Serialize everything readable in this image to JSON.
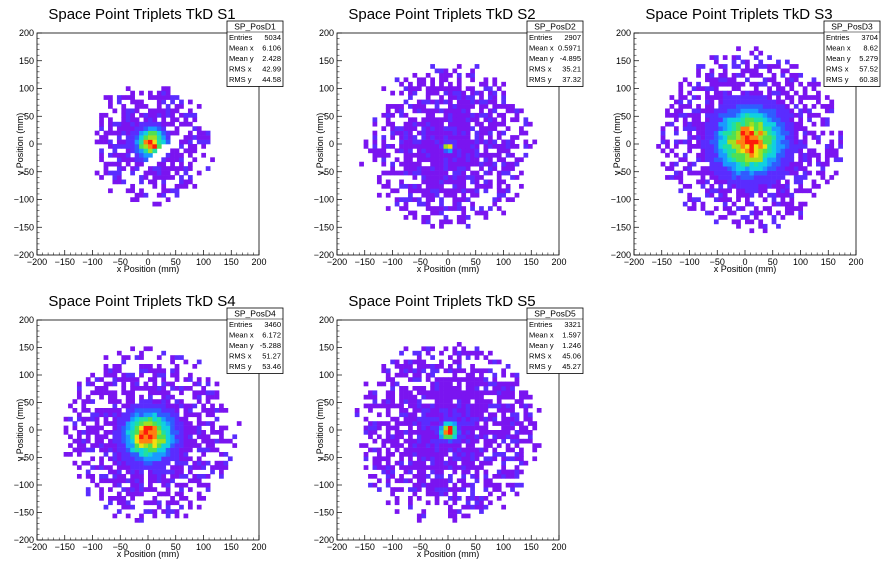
{
  "chart_data": [
    {
      "type": "heatmap",
      "title": "Space Point Triplets TkD S1",
      "xlabel": "x Position (mm)",
      "ylabel": "y Position (mm)",
      "xlim": [
        -200,
        200
      ],
      "ylim": [
        -200,
        200
      ],
      "xticks": [
        "−200",
        "−150",
        "−100",
        "−50",
        "0",
        "50",
        "100",
        "150",
        "200"
      ],
      "yticks": [
        "−200",
        "−150",
        "−100",
        "−50",
        "0",
        "50",
        "100",
        "150",
        "200"
      ],
      "stats": {
        "name": "SP_PosD1",
        "rows": [
          {
            "label": "Entries",
            "value": "5034"
          },
          {
            "label": "Mean x",
            "value": "6.106"
          },
          {
            "label": "Mean y",
            "value": "2.428"
          },
          {
            "label": "RMS x",
            "value": "42.99"
          },
          {
            "label": "RMS y",
            "value": "44.58"
          }
        ]
      },
      "distribution": {
        "cx": 6,
        "cy": 2,
        "sigma": 16,
        "extent": 95,
        "hole_band": {
          "slope": 0.9,
          "offset": -38,
          "halfwidth": 9
        }
      }
    },
    {
      "type": "heatmap",
      "title": "Space Point Triplets TkD S2",
      "xlabel": "x Position (mm)",
      "ylabel": "y Position (mm)",
      "xlim": [
        -200,
        200
      ],
      "ylim": [
        -200,
        200
      ],
      "xticks": [
        "−200",
        "−150",
        "−100",
        "−50",
        "0",
        "50",
        "100",
        "150",
        "200"
      ],
      "yticks": [
        "−200",
        "−150",
        "−100",
        "−50",
        "0",
        "50",
        "100",
        "150",
        "200"
      ],
      "stats": {
        "name": "SP_PosD2",
        "rows": [
          {
            "label": "Entries",
            "value": "2907"
          },
          {
            "label": "Mean x",
            "value": "0.5971"
          },
          {
            "label": "Mean y",
            "value": "-4.895"
          },
          {
            "label": "RMS x",
            "value": "35.21"
          },
          {
            "label": "RMS y",
            "value": "37.32"
          }
        ]
      },
      "distribution": {
        "cx": 0,
        "cy": -5,
        "sigma": 5,
        "extent": 135
      }
    },
    {
      "type": "heatmap",
      "title": "Space Point Triplets TkD S3",
      "xlabel": "x Position (mm)",
      "ylabel": "y Position (mm)",
      "xlim": [
        -200,
        200
      ],
      "ylim": [
        -200,
        200
      ],
      "xticks": [
        "−200",
        "−150",
        "−100",
        "−50",
        "0",
        "50",
        "100",
        "150",
        "200"
      ],
      "yticks": [
        "−200",
        "−150",
        "−100",
        "−50",
        "0",
        "50",
        "100",
        "150",
        "200"
      ],
      "stats": {
        "name": "SP_PosD3",
        "rows": [
          {
            "label": "Entries",
            "value": "3704"
          },
          {
            "label": "Mean x",
            "value": "8.62"
          },
          {
            "label": "Mean y",
            "value": "5.279"
          },
          {
            "label": "RMS x",
            "value": "57.52"
          },
          {
            "label": "RMS y",
            "value": "60.38"
          }
        ]
      },
      "distribution": {
        "cx": 8,
        "cy": 5,
        "sigma": 35,
        "extent": 150
      }
    },
    {
      "type": "heatmap",
      "title": "Space Point Triplets TkD S4",
      "xlabel": "x Position (mm)",
      "ylabel": "y Position (mm)",
      "xlim": [
        -200,
        200
      ],
      "ylim": [
        -200,
        200
      ],
      "xticks": [
        "−200",
        "−150",
        "−100",
        "−50",
        "0",
        "50",
        "100",
        "150",
        "200"
      ],
      "yticks": [
        "−200",
        "−150",
        "−100",
        "−50",
        "0",
        "50",
        "100",
        "150",
        "200"
      ],
      "stats": {
        "name": "SP_PosD4",
        "rows": [
          {
            "label": "Entries",
            "value": "3460"
          },
          {
            "label": "Mean x",
            "value": "6.172"
          },
          {
            "label": "Mean y",
            "value": "-5.288"
          },
          {
            "label": "RMS x",
            "value": "51.27"
          },
          {
            "label": "RMS y",
            "value": "53.46"
          }
        ]
      },
      "distribution": {
        "cx": 2,
        "cy": -10,
        "sigma": 26,
        "extent": 140
      }
    },
    {
      "type": "heatmap",
      "title": "Space Point Triplets TkD S5",
      "xlabel": "x Position (mm)",
      "ylabel": "y Position (mm)",
      "xlim": [
        -200,
        200
      ],
      "ylim": [
        -200,
        200
      ],
      "xticks": [
        "−200",
        "−150",
        "−100",
        "−50",
        "0",
        "50",
        "100",
        "150",
        "200"
      ],
      "yticks": [
        "−200",
        "−150",
        "−100",
        "−50",
        "0",
        "50",
        "100",
        "150",
        "200"
      ],
      "stats": {
        "name": "SP_PosD5",
        "rows": [
          {
            "label": "Entries",
            "value": "3321"
          },
          {
            "label": "Mean x",
            "value": "1.597"
          },
          {
            "label": "Mean y",
            "value": "1.246"
          },
          {
            "label": "RMS x",
            "value": "45.06"
          },
          {
            "label": "RMS y",
            "value": "45.27"
          }
        ]
      },
      "distribution": {
        "cx": 2,
        "cy": -2,
        "sigma": 10,
        "extent": 150
      }
    }
  ],
  "colors": {
    "palette": [
      "#7a14f0",
      "#5a2cff",
      "#2f5cff",
      "#1a9aff",
      "#10d0e0",
      "#20e0a0",
      "#50e050",
      "#a0e020",
      "#f0e010",
      "#ff8010",
      "#ff1a0a"
    ],
    "background": "#ffffff"
  }
}
